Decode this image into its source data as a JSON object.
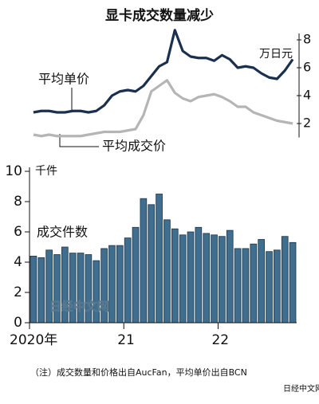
{
  "title": "显卡成交数量减少",
  "chart_data": [
    {
      "type": "line",
      "y_label": "万日元",
      "ylim": [
        1,
        9
      ],
      "yticks": [
        2,
        4,
        6,
        8
      ],
      "series": [
        {
          "name": "平均单价",
          "color": "#1b2f4f",
          "values": [
            2.8,
            2.9,
            2.9,
            2.8,
            2.8,
            2.9,
            2.9,
            2.8,
            2.9,
            3.3,
            4.0,
            4.3,
            4.4,
            4.3,
            4.7,
            5.4,
            6.1,
            6.4,
            8.7,
            7.2,
            6.8,
            6.7,
            6.7,
            6.5,
            6.9,
            6.6,
            6.0,
            6.1,
            6.0,
            5.6,
            5.3,
            5.2,
            5.8,
            6.6
          ]
        },
        {
          "name": "平均成交价",
          "color": "#b5b5b5",
          "values": [
            1.2,
            1.1,
            1.2,
            1.1,
            1.1,
            1.1,
            1.1,
            1.2,
            1.3,
            1.4,
            1.4,
            1.4,
            1.5,
            1.6,
            2.6,
            4.3,
            4.7,
            5.1,
            4.2,
            3.8,
            3.6,
            3.9,
            4.0,
            4.1,
            3.9,
            3.6,
            3.2,
            3.2,
            2.8,
            2.6,
            2.4,
            2.2,
            2.1,
            2.0
          ]
        }
      ]
    },
    {
      "type": "bar",
      "y_label": "千件",
      "annotation": "成交件数",
      "color": "#3f6e8f",
      "ylim": [
        0,
        10
      ],
      "yticks": [
        0,
        2,
        4,
        6,
        8,
        10
      ],
      "categories": [
        "2020年",
        null,
        null,
        null,
        null,
        null,
        null,
        null,
        null,
        null,
        null,
        null,
        "21",
        null,
        null,
        null,
        null,
        null,
        null,
        null,
        null,
        null,
        null,
        null,
        "22",
        null,
        null,
        null,
        null,
        null,
        null,
        null,
        null,
        null
      ],
      "values": [
        4.4,
        4.3,
        4.8,
        4.5,
        5.0,
        4.6,
        4.6,
        4.5,
        4.1,
        4.9,
        5.1,
        5.1,
        5.6,
        6.3,
        8.2,
        7.8,
        8.5,
        6.8,
        6.2,
        5.8,
        6.0,
        6.3,
        5.9,
        5.8,
        5.7,
        6.1,
        4.9,
        4.9,
        5.2,
        5.5,
        4.7,
        4.8,
        5.7,
        5.3
      ]
    }
  ],
  "note": "（注）成交数量和价格出自AucFan，平均单价出自BCN",
  "watermark": "日经中文网",
  "source_logo": "日经中文网"
}
